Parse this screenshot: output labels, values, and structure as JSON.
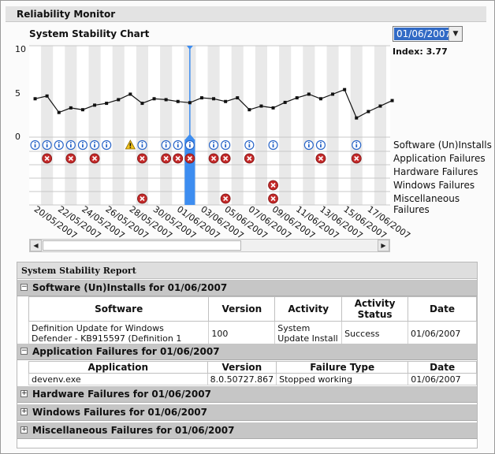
{
  "window_title": "Reliability Monitor",
  "chart": {
    "title": "System Stability Chart",
    "selected_date": "01/06/2007",
    "index_label": "Index: 3.77",
    "y_ticks": [
      "10",
      "5",
      "0"
    ],
    "categories": [
      "Software (Un)Installs",
      "Application Failures",
      "Hardware Failures",
      "Windows Failures",
      "Miscellaneous Failures"
    ],
    "date_labels": [
      "20/05/2007",
      "22/05/2007",
      "24/05/2007",
      "26/05/2007",
      "28/05/2007",
      "30/05/2007",
      "01/06/2007",
      "03/06/2007",
      "05/06/2007",
      "07/06/2007",
      "09/06/2007",
      "11/06/2007",
      "13/06/2007",
      "15/06/2007",
      "17/06/2007"
    ]
  },
  "chart_data": {
    "type": "line",
    "ylim": [
      0,
      10
    ],
    "selected_index": 13,
    "stability_index": [
      4.2,
      4.5,
      2.7,
      3.2,
      3.0,
      3.5,
      3.7,
      4.1,
      4.7,
      3.7,
      4.2,
      4.1,
      3.9,
      3.77,
      4.3,
      4.2,
      3.9,
      4.3,
      3.0,
      3.4,
      3.2,
      3.8,
      4.3,
      4.7,
      4.2,
      4.7,
      5.2,
      2.1,
      2.8,
      3.4,
      4.0
    ],
    "software_installs": [
      {
        "day": 0,
        "icon": "info"
      },
      {
        "day": 1,
        "icon": "info"
      },
      {
        "day": 2,
        "icon": "info"
      },
      {
        "day": 3,
        "icon": "info"
      },
      {
        "day": 4,
        "icon": "info"
      },
      {
        "day": 5,
        "icon": "info"
      },
      {
        "day": 6,
        "icon": "info"
      },
      {
        "day": 8,
        "icon": "warning"
      },
      {
        "day": 9,
        "icon": "info"
      },
      {
        "day": 11,
        "icon": "info"
      },
      {
        "day": 12,
        "icon": "info"
      },
      {
        "day": 13,
        "icon": "info"
      },
      {
        "day": 15,
        "icon": "info"
      },
      {
        "day": 16,
        "icon": "info"
      },
      {
        "day": 18,
        "icon": "info"
      },
      {
        "day": 20,
        "icon": "info"
      },
      {
        "day": 23,
        "icon": "info"
      },
      {
        "day": 24,
        "icon": "info"
      },
      {
        "day": 27,
        "icon": "info"
      }
    ],
    "application_failures": [
      1,
      3,
      5,
      9,
      11,
      12,
      13,
      15,
      16,
      18,
      24,
      27
    ],
    "hardware_failures": [],
    "windows_failures": [
      20
    ],
    "miscellaneous_failures": [
      9,
      16,
      20
    ]
  },
  "report": {
    "title": "System Stability Report",
    "software_section": {
      "title": "Software (Un)Installs for 01/06/2007",
      "headers": [
        "Software",
        "Version",
        "Activity",
        "Activity Status",
        "Date"
      ],
      "rows": [
        {
          "software": "Definition Update for Windows Defender - KB915597 (Definition 1",
          "version": "100",
          "activity": "System Update Install",
          "status": "Success",
          "date": "01/06/2007"
        }
      ]
    },
    "app_section": {
      "title": "Application Failures for 01/06/2007",
      "headers": [
        "Application",
        "Version",
        "Failure Type",
        "Date"
      ],
      "rows": [
        {
          "application": "devenv.exe",
          "version": "8.0.50727.867",
          "failure_type": "Stopped working",
          "date": "01/06/2007"
        }
      ]
    },
    "collapsed_sections": [
      "Hardware Failures for 01/06/2007",
      "Windows Failures for 01/06/2007",
      "Miscellaneous Failures for 01/06/2007"
    ],
    "toggle_expanded": "−",
    "toggle_collapsed": "+"
  },
  "colors": {
    "selection": "#3d8df0",
    "error": "#c42a2a",
    "info": "#2a66c8",
    "warning": "#f2c21b"
  }
}
